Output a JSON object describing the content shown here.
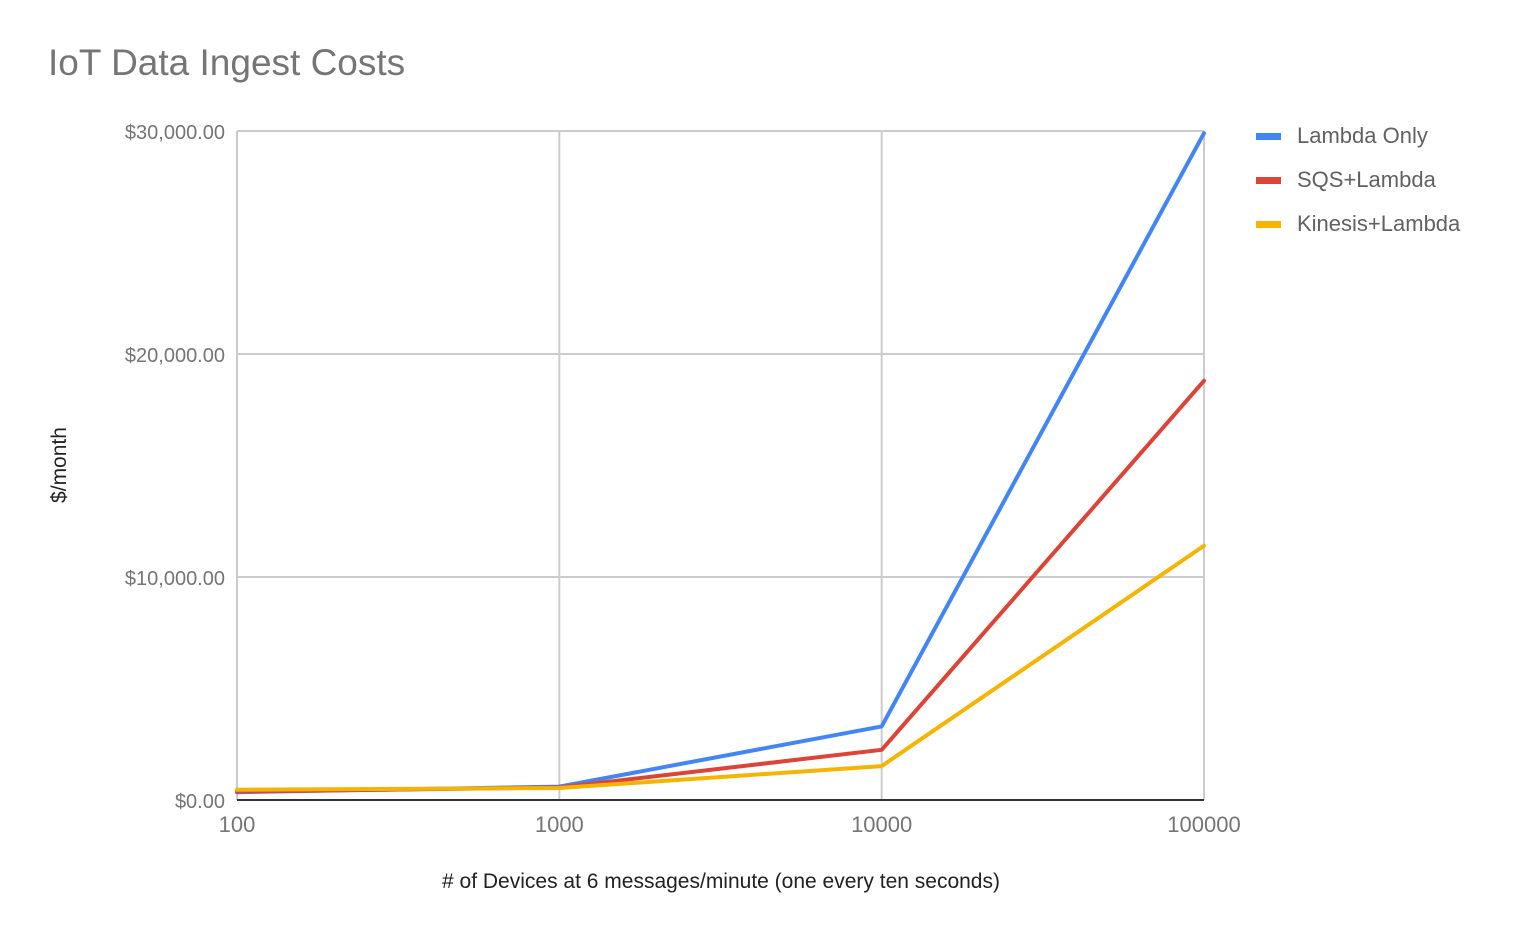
{
  "chart_data": {
    "type": "line",
    "title": "IoT Data Ingest Costs",
    "xlabel": "# of Devices at 6 messages/minute (one every ten seconds)",
    "ylabel": "$/month",
    "x": [
      100,
      1000,
      10000,
      100000
    ],
    "x_tick_labels": [
      "100",
      "1000",
      "10000",
      "100000"
    ],
    "x_scale": "categorical (log-spaced)",
    "ylim": [
      0,
      30000
    ],
    "y_ticks": [
      0,
      10000,
      20000,
      30000
    ],
    "y_tick_labels": [
      "$0.00",
      "$10,000.00",
      "$20,000.00",
      "$30,000.00"
    ],
    "grid": true,
    "legend_position": "right",
    "series": [
      {
        "name": "Lambda Only",
        "color": "#4285f4",
        "values": [
          350,
          600,
          3300,
          29900
        ]
      },
      {
        "name": "SQS+Lambda",
        "color": "#db4437",
        "values": [
          380,
          560,
          2250,
          18800
        ]
      },
      {
        "name": "Kinesis+Lambda",
        "color": "#f4b400",
        "values": [
          460,
          540,
          1520,
          11400
        ]
      }
    ]
  }
}
